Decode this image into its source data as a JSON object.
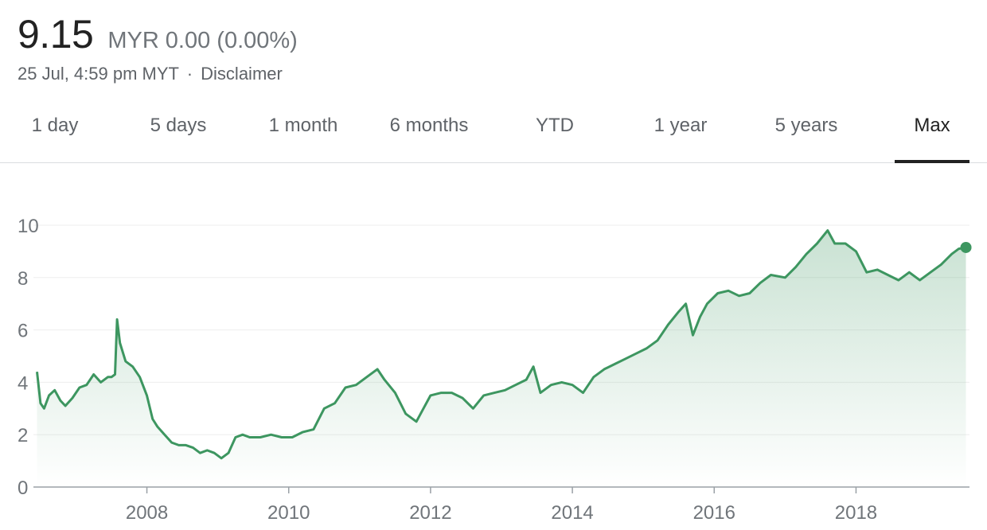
{
  "quote": {
    "price": "9.15",
    "currency": "MYR",
    "change": "0.00 (0.00%)",
    "timestamp": "25 Jul, 4:59 pm MYT",
    "separator": "·",
    "disclaimer": "Disclaimer"
  },
  "tabs": [
    {
      "label": "1 day"
    },
    {
      "label": "5 days"
    },
    {
      "label": "1 month"
    },
    {
      "label": "6 months"
    },
    {
      "label": "YTD"
    },
    {
      "label": "1 year"
    },
    {
      "label": "5 years"
    },
    {
      "label": "Max",
      "active": true
    }
  ],
  "colors": {
    "line": "#3d9660",
    "fill": "#3d9660",
    "grid": "#eeeeee",
    "axis": "#9aa0a6",
    "active_tab": "#222222"
  },
  "chart_data": {
    "type": "area",
    "title": "",
    "xlabel": "",
    "ylabel": "",
    "xlim": [
      2006.4,
      2019.6
    ],
    "ylim": [
      0,
      10
    ],
    "yticks": [
      "0",
      "2",
      "4",
      "6",
      "8",
      "10"
    ],
    "xticks": [
      "2008",
      "2010",
      "2012",
      "2014",
      "2016",
      "2018"
    ],
    "grid": true,
    "legend": "none",
    "last_point_marker": true,
    "series": [
      {
        "x": [
          2006.45,
          2006.5,
          2006.55,
          2006.62,
          2006.7,
          2006.78,
          2006.85,
          2006.95,
          2007.05,
          2007.15,
          2007.25,
          2007.35,
          2007.45,
          2007.5,
          2007.55,
          2007.58,
          2007.62,
          2007.7,
          2007.8,
          2007.9,
          2008.0,
          2008.08,
          2008.15,
          2008.25,
          2008.35,
          2008.45,
          2008.55,
          2008.65,
          2008.75,
          2008.85,
          2008.95,
          2009.05,
          2009.15,
          2009.25,
          2009.35,
          2009.45,
          2009.6,
          2009.75,
          2009.9,
          2010.05,
          2010.2,
          2010.35,
          2010.5,
          2010.65,
          2010.8,
          2010.95,
          2011.1,
          2011.25,
          2011.35,
          2011.5,
          2011.65,
          2011.8,
          2011.9,
          2012.0,
          2012.15,
          2012.3,
          2012.45,
          2012.6,
          2012.75,
          2012.9,
          2013.05,
          2013.2,
          2013.35,
          2013.45,
          2013.55,
          2013.7,
          2013.85,
          2014.0,
          2014.15,
          2014.3,
          2014.45,
          2014.6,
          2014.75,
          2014.9,
          2015.05,
          2015.2,
          2015.35,
          2015.5,
          2015.6,
          2015.7,
          2015.8,
          2015.9,
          2016.05,
          2016.2,
          2016.35,
          2016.5,
          2016.65,
          2016.8,
          2017.0,
          2017.15,
          2017.3,
          2017.45,
          2017.6,
          2017.7,
          2017.85,
          2018.0,
          2018.15,
          2018.3,
          2018.45,
          2018.6,
          2018.75,
          2018.9,
          2019.05,
          2019.2,
          2019.35,
          2019.45,
          2019.55
        ],
        "y": [
          4.4,
          3.2,
          3.0,
          3.5,
          3.7,
          3.3,
          3.1,
          3.4,
          3.8,
          3.9,
          4.3,
          4.0,
          4.2,
          4.2,
          4.3,
          6.4,
          5.5,
          4.8,
          4.6,
          4.2,
          3.5,
          2.6,
          2.3,
          2.0,
          1.7,
          1.6,
          1.6,
          1.5,
          1.3,
          1.4,
          1.3,
          1.1,
          1.3,
          1.9,
          2.0,
          1.9,
          1.9,
          2.0,
          1.9,
          1.9,
          2.1,
          2.2,
          3.0,
          3.2,
          3.8,
          3.9,
          4.2,
          4.5,
          4.1,
          3.6,
          2.8,
          2.5,
          3.0,
          3.5,
          3.6,
          3.6,
          3.4,
          3.0,
          3.5,
          3.6,
          3.7,
          3.9,
          4.1,
          4.6,
          3.6,
          3.9,
          4.0,
          3.9,
          3.6,
          4.2,
          4.5,
          4.7,
          4.9,
          5.1,
          5.3,
          5.6,
          6.2,
          6.7,
          7.0,
          5.8,
          6.5,
          7.0,
          7.4,
          7.5,
          7.3,
          7.4,
          7.8,
          8.1,
          8.0,
          8.4,
          8.9,
          9.3,
          9.8,
          9.3,
          9.3,
          9.0,
          8.2,
          8.3,
          8.1,
          7.9,
          8.2,
          7.9,
          8.2,
          8.5,
          8.9,
          9.1,
          9.15
        ]
      }
    ]
  }
}
